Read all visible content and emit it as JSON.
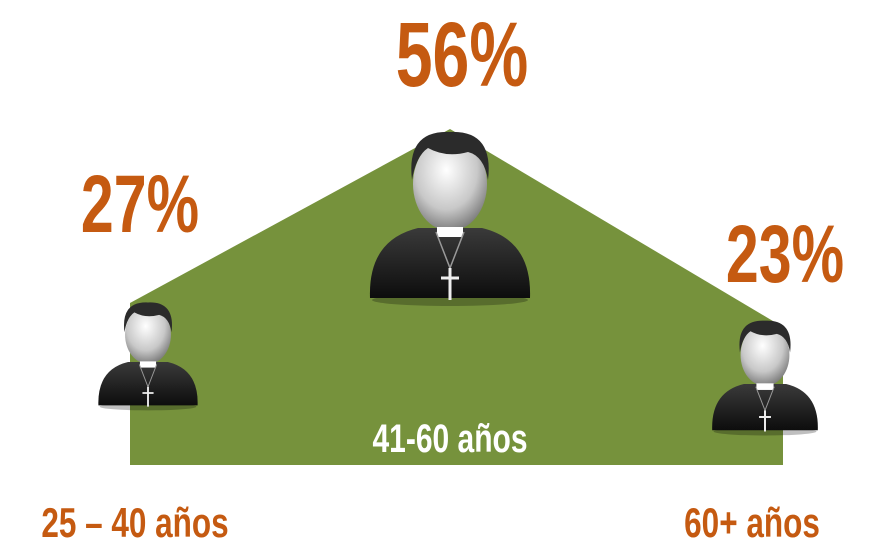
{
  "chart_data": {
    "type": "area",
    "categories": [
      "25 – 40 años",
      "41-60 años",
      "60+ años"
    ],
    "values": [
      27,
      56,
      23
    ],
    "value_labels": [
      "27%",
      "56%",
      "23%"
    ],
    "color": "#76923c",
    "label_color": "#c55a11"
  }
}
